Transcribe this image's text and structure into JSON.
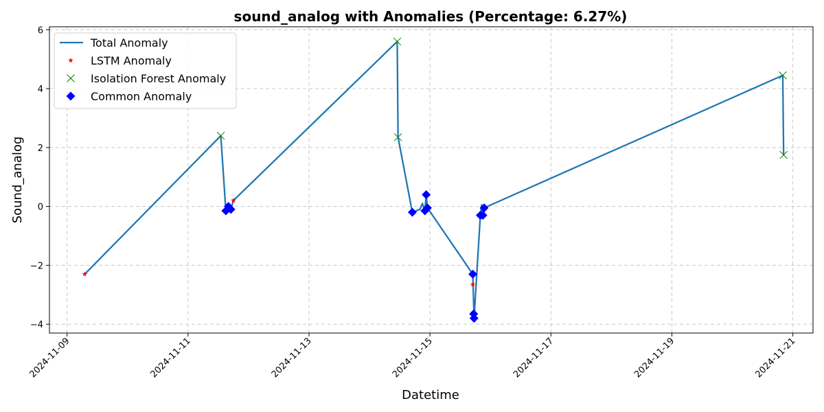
{
  "chart_data": {
    "type": "line",
    "title": "sound_analog with Anomalies (Percentage: 6.27%)",
    "xlabel": "Datetime",
    "ylabel": "Sound_analog",
    "xlim": [
      "2024-11-08T17:00",
      "2024-11-21T08:00"
    ],
    "ylim": [
      -4.3,
      6.1
    ],
    "x_ticks": [
      "2024-11-09",
      "2024-11-11",
      "2024-11-13",
      "2024-11-15",
      "2024-11-17",
      "2024-11-19",
      "2024-11-21"
    ],
    "y_ticks": [
      -4,
      -2,
      0,
      2,
      4,
      6
    ],
    "grid": true,
    "legend_position": "upper-left",
    "colors": {
      "line": "#1f77b4",
      "lstm": "#ff0000",
      "iforest": "#008000",
      "common": "#0000ff",
      "grid": "#c8c8c8"
    },
    "series": [
      {
        "name": "Total Anomaly",
        "kind": "line",
        "points": [
          [
            "2024-11-09T07:00",
            -2.3
          ],
          [
            "2024-11-11T13:00",
            2.4
          ],
          [
            "2024-11-11T15:00",
            -0.15
          ],
          [
            "2024-11-11T16:00",
            0.0
          ],
          [
            "2024-11-11T17:00",
            -0.1
          ],
          [
            "2024-11-11T18:00",
            0.2
          ],
          [
            "2024-11-14T11:00",
            5.6
          ],
          [
            "2024-11-14T11:20",
            2.35
          ],
          [
            "2024-11-14T17:00",
            -0.2
          ],
          [
            "2024-11-14T20:00",
            -0.1
          ],
          [
            "2024-11-14T21:00",
            0.1
          ],
          [
            "2024-11-14T22:00",
            -0.15
          ],
          [
            "2024-11-14T22:30",
            0.4
          ],
          [
            "2024-11-14T23:00",
            -0.05
          ],
          [
            "2024-11-15T17:00",
            -2.3
          ],
          [
            "2024-11-15T17:30",
            -3.8
          ],
          [
            "2024-11-15T20:00",
            -0.3
          ],
          [
            "2024-11-15T20:30",
            0.05
          ],
          [
            "2024-11-15T21:00",
            -0.3
          ],
          [
            "2024-11-15T21:30",
            -0.05
          ],
          [
            "2024-11-20T20:00",
            4.45
          ],
          [
            "2024-11-20T20:20",
            1.75
          ]
        ]
      },
      {
        "name": "LSTM Anomaly",
        "kind": "star",
        "points": [
          [
            "2024-11-09T07:00",
            -2.3
          ],
          [
            "2024-11-11T18:00",
            0.2
          ],
          [
            "2024-11-15T17:00",
            -2.65
          ]
        ]
      },
      {
        "name": "Isolation Forest Anomaly",
        "kind": "x",
        "points": [
          [
            "2024-11-11T13:00",
            2.4
          ],
          [
            "2024-11-14T11:00",
            5.6
          ],
          [
            "2024-11-14T11:20",
            2.35
          ],
          [
            "2024-11-20T20:00",
            4.45
          ],
          [
            "2024-11-20T20:20",
            1.75
          ]
        ]
      },
      {
        "name": "Common Anomaly",
        "kind": "diamond",
        "points": [
          [
            "2024-11-11T15:00",
            -0.15
          ],
          [
            "2024-11-11T16:00",
            0.0
          ],
          [
            "2024-11-11T17:00",
            -0.1
          ],
          [
            "2024-11-14T17:00",
            -0.2
          ],
          [
            "2024-11-14T22:00",
            -0.15
          ],
          [
            "2024-11-14T22:30",
            0.4
          ],
          [
            "2024-11-14T23:00",
            -0.05
          ],
          [
            "2024-11-15T17:00",
            -2.3
          ],
          [
            "2024-11-15T17:20",
            -3.65
          ],
          [
            "2024-11-15T17:30",
            -3.8
          ],
          [
            "2024-11-15T20:00",
            -0.3
          ],
          [
            "2024-11-15T21:00",
            -0.3
          ],
          [
            "2024-11-15T21:30",
            -0.05
          ]
        ]
      }
    ]
  }
}
